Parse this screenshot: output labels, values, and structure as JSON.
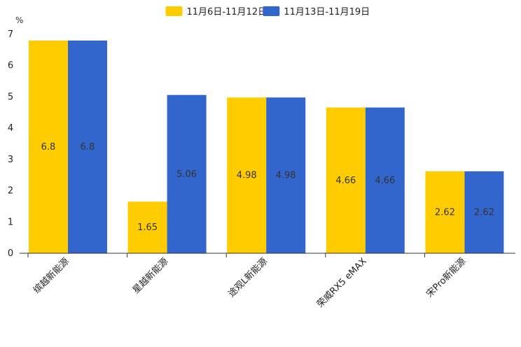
{
  "chart_data": {
    "type": "bar",
    "title": "",
    "xlabel": "",
    "ylabel": "%",
    "ylim": [
      0,
      7
    ],
    "yticks": [
      0,
      1,
      2,
      3,
      4,
      5,
      6,
      7
    ],
    "grid": false,
    "legend_position": "top-center",
    "categories": [
      "缤越新能源",
      "星越新能源",
      "途观L新能源",
      "荣威RX5 eMAX",
      "宋Pro新能源"
    ],
    "series": [
      {
        "name": "11月6日-11月12日",
        "color": "#ffcc00",
        "values": [
          6.8,
          1.65,
          4.98,
          4.66,
          2.62
        ]
      },
      {
        "name": "11月13日-11月19日",
        "color": "#3366cc",
        "values": [
          6.8,
          5.06,
          4.98,
          4.66,
          2.62
        ]
      }
    ],
    "data_labels": [
      [
        "6.8",
        "1.65",
        "4.98",
        "4.66",
        "2.62"
      ],
      [
        "6.8",
        "5.06",
        "4.98",
        "4.66",
        "2.62"
      ]
    ]
  }
}
